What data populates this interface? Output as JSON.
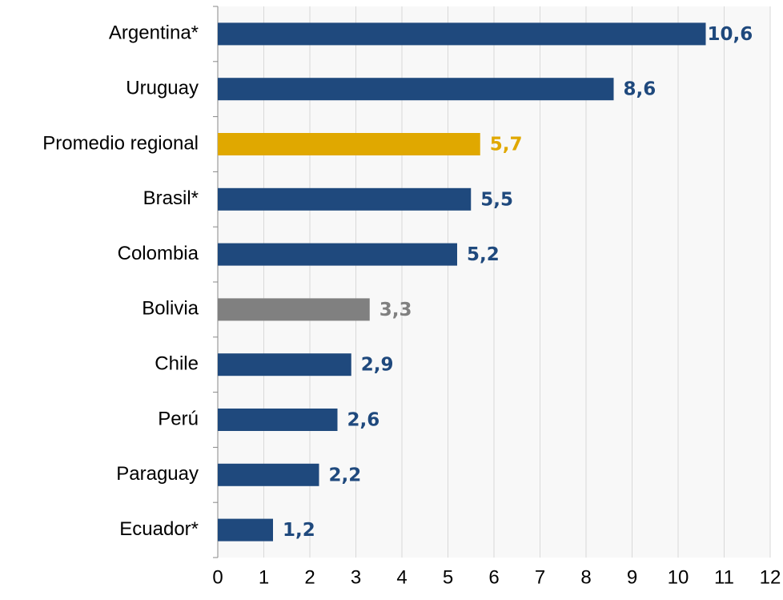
{
  "chart_data": {
    "type": "barh",
    "categories": [
      "Argentina*",
      "Uruguay",
      "Promedio regional",
      "Brasil*",
      "Colombia",
      "Bolivia",
      "Chile",
      "Perú",
      "Paraguay",
      "Ecuador*"
    ],
    "values": [
      10.6,
      8.6,
      5.7,
      5.5,
      5.2,
      3.3,
      2.9,
      2.6,
      2.2,
      1.2
    ],
    "value_labels": [
      "10,6",
      "8,6",
      "5,7",
      "5,5",
      "5,2",
      "3,3",
      "2,9",
      "2,6",
      "2,2",
      "1,2"
    ],
    "colors": [
      "#1f497d",
      "#1f497d",
      "#e0a800",
      "#1f497d",
      "#1f497d",
      "#808080",
      "#1f497d",
      "#1f497d",
      "#1f497d",
      "#1f497d"
    ],
    "xlim": [
      0,
      12
    ],
    "xticks": [
      0,
      1,
      2,
      3,
      4,
      5,
      6,
      7,
      8,
      9,
      10,
      11,
      12
    ],
    "grid": true
  }
}
